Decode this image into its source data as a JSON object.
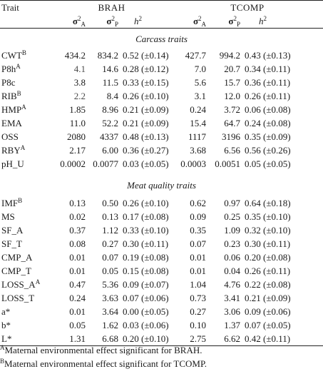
{
  "header": {
    "trait_label": "Trait",
    "group1": "BRAH",
    "group2": "TCOMP",
    "sigma_symbol": "σ",
    "sigma_sub_a": "A",
    "sigma_sub_p": "P",
    "sigma_sup": "2",
    "h_symbol": "h",
    "h_sup": "2"
  },
  "sections": [
    {
      "title": "Carcass traits",
      "rows": [
        {
          "trait": "CWT",
          "sup": "B",
          "b_a": "434.2",
          "b_p": "834.2",
          "b_h": "0.52 (±0.14)",
          "t_a": "427.7",
          "t_p": "994.2",
          "t_h": "0.43 (±0.13)"
        },
        {
          "trait": "P8h",
          "sup": "A",
          "b_a": "4.1",
          "b_p": "14.6",
          "b_h": "0.28 (±0.12)",
          "t_a": "7.0",
          "t_p": "20.7",
          "t_h": "0.34 (±0.11)"
        },
        {
          "trait": "P8c",
          "sup": "",
          "b_a": "3.8",
          "b_p": "11.5",
          "b_h": "0.33 (±0.15)",
          "t_a": "5.6",
          "t_p": "15.7",
          "t_h": "0.36 (±0.11)"
        },
        {
          "trait": "RIB",
          "sup": "B",
          "b_a": "2.2",
          "b_p": "8.4",
          "b_h": "0.26 (±0.10)",
          "t_a": "3.1",
          "t_p": "12.0",
          "t_h": "0.26 (±0.11)"
        },
        {
          "trait": "HMP",
          "sup": "A",
          "b_a": "1.85",
          "b_p": "8.96",
          "b_h": "0.21 (±0.09)",
          "t_a": "0.24",
          "t_p": "3.72",
          "t_h": "0.06 (±0.08)"
        },
        {
          "trait": "EMA",
          "sup": "",
          "b_a": "11.0",
          "b_p": "52.2",
          "b_h": "0.21 (±0.09)",
          "t_a": "15.4",
          "t_p": "64.7",
          "t_h": "0.24 (±0.08)"
        },
        {
          "trait": "OSS",
          "sup": "",
          "b_a": "2080",
          "b_p": "4337",
          "b_h": "0.48 (±0.13)",
          "t_a": "1117",
          "t_p": "3196",
          "t_h": "0.35 (±0.09)"
        },
        {
          "trait": "RBY",
          "sup": "A",
          "b_a": "2.17",
          "b_p": "6.00",
          "b_h": "0.36 (±0.27)",
          "t_a": "3.68",
          "t_p": "6.56",
          "t_h": "0.56 (±0.26)"
        },
        {
          "trait": "pH_U",
          "sup": "",
          "b_a": "0.0002",
          "b_p": "0.0077",
          "b_h": "0.03 (±0.05)",
          "t_a": "0.0003",
          "t_p": "0.0051",
          "t_h": "0.05 (±0.05)"
        }
      ]
    },
    {
      "title": "Meat quality traits",
      "rows": [
        {
          "trait": "IMF",
          "sup": "B",
          "b_a": "0.13",
          "b_p": "0.50",
          "b_h": "0.26 (±0.10)",
          "t_a": "0.62",
          "t_p": "0.97",
          "t_h": "0.64 (±0.18)"
        },
        {
          "trait": "MS",
          "sup": "",
          "b_a": "0.02",
          "b_p": "0.13",
          "b_h": "0.17 (±0.08)",
          "t_a": "0.09",
          "t_p": "0.25",
          "t_h": "0.35 (±0.10)"
        },
        {
          "trait": "SF_A",
          "sup": "",
          "b_a": "0.37",
          "b_p": "1.12",
          "b_h": "0.33 (±0.10)",
          "t_a": "0.35",
          "t_p": "1.09",
          "t_h": "0.32 (±0.10)"
        },
        {
          "trait": "SF_T",
          "sup": "",
          "b_a": "0.08",
          "b_p": "0.27",
          "b_h": "0.30 (±0.11)",
          "t_a": "0.07",
          "t_p": "0.23",
          "t_h": "0.30 (±0.11)"
        },
        {
          "trait": "CMP_A",
          "sup": "",
          "b_a": "0.01",
          "b_p": "0.07",
          "b_h": "0.19 (±0.08)",
          "t_a": "0.01",
          "t_p": "0.06",
          "t_h": "0.20 (±0.08)"
        },
        {
          "trait": "CMP_T",
          "sup": "",
          "b_a": "0.01",
          "b_p": "0.05",
          "b_h": "0.15 (±0.08)",
          "t_a": "0.01",
          "t_p": "0.04",
          "t_h": "0.26 (±0.11)"
        },
        {
          "trait": "LOSS_A",
          "sup": "A",
          "b_a": "0.47",
          "b_p": "5.36",
          "b_h": "0.09 (±0.07)",
          "t_a": "1.04",
          "t_p": "4.76",
          "t_h": "0.22 (±0.08)"
        },
        {
          "trait": "LOSS_T",
          "sup": "",
          "b_a": "0.24",
          "b_p": "3.63",
          "b_h": "0.07 (±0.06)",
          "t_a": "0.73",
          "t_p": "3.41",
          "t_h": "0.21 (±0.09)"
        },
        {
          "trait": "a*",
          "sup": "",
          "b_a": "0.01",
          "b_p": "3.64",
          "b_h": "0.00 (±0.05)",
          "t_a": "0.27",
          "t_p": "3.06",
          "t_h": "0.09 (±0.06)"
        },
        {
          "trait": "b*",
          "sup": "",
          "b_a": "0.05",
          "b_p": "1.62",
          "b_h": "0.03 (±0.06)",
          "t_a": "0.10",
          "t_p": "1.37",
          "t_h": "0.07 (±0.05)"
        },
        {
          "trait": "L*",
          "sup": "",
          "b_a": "1.31",
          "b_p": "6.68",
          "b_h": "0.20 (±0.10)",
          "t_a": "2.75",
          "t_p": "6.62",
          "t_h": "0.42 (±0.11)"
        }
      ]
    }
  ],
  "footnotes": [
    {
      "mark": "A",
      "text": "Maternal environmental effect significant for BRAH."
    },
    {
      "mark": "B",
      "text": "Maternal environmental effect significant for TCOMP."
    }
  ]
}
